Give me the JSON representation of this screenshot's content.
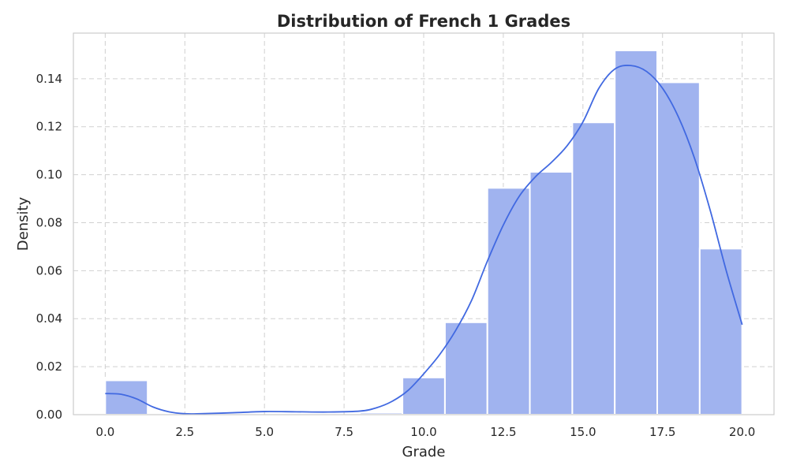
{
  "chart_data": {
    "type": "bar",
    "title": "Distribution of French 1 Grades",
    "xlabel": "Grade",
    "ylabel": "Density",
    "xlim": [
      -1,
      21
    ],
    "ylim": [
      0,
      0.159
    ],
    "xticks": [
      0.0,
      2.5,
      5.0,
      7.5,
      10.0,
      12.5,
      15.0,
      17.5,
      20.0
    ],
    "xtick_labels": [
      "0.0",
      "2.5",
      "5.0",
      "7.5",
      "10.0",
      "12.5",
      "15.0",
      "17.5",
      "20.0"
    ],
    "yticks": [
      0.0,
      0.02,
      0.04,
      0.06,
      0.08,
      0.1,
      0.12,
      0.14
    ],
    "ytick_labels": [
      "0.00",
      "0.02",
      "0.04",
      "0.06",
      "0.08",
      "0.10",
      "0.12",
      "0.14"
    ],
    "grid": true,
    "bins": [
      {
        "x0": 0.0,
        "x1": 1.333,
        "density": 0.0143
      },
      {
        "x0": 1.333,
        "x1": 2.667,
        "density": 0.0
      },
      {
        "x0": 2.667,
        "x1": 4.0,
        "density": 0.0
      },
      {
        "x0": 4.0,
        "x1": 5.333,
        "density": 0.0
      },
      {
        "x0": 5.333,
        "x1": 6.667,
        "density": 0.0
      },
      {
        "x0": 6.667,
        "x1": 8.0,
        "density": 0.0
      },
      {
        "x0": 8.0,
        "x1": 9.333,
        "density": 0.0008
      },
      {
        "x0": 9.333,
        "x1": 10.667,
        "density": 0.0155
      },
      {
        "x0": 10.667,
        "x1": 12.0,
        "density": 0.0385
      },
      {
        "x0": 12.0,
        "x1": 13.333,
        "density": 0.0945
      },
      {
        "x0": 13.333,
        "x1": 14.667,
        "density": 0.1012
      },
      {
        "x0": 14.667,
        "x1": 16.0,
        "density": 0.1218
      },
      {
        "x0": 16.0,
        "x1": 17.333,
        "density": 0.1518
      },
      {
        "x0": 17.333,
        "x1": 18.667,
        "density": 0.1385
      },
      {
        "x0": 18.667,
        "x1": 20.0,
        "density": 0.0692
      }
    ],
    "kde": {
      "x": [
        0,
        0.5,
        1,
        1.5,
        2,
        2.5,
        3,
        4,
        5,
        6,
        7,
        8,
        8.5,
        9,
        9.5,
        10,
        10.5,
        11,
        11.5,
        12,
        12.5,
        13,
        13.5,
        14,
        14.5,
        15,
        15.5,
        16,
        16.5,
        17,
        17.5,
        18,
        18.5,
        19,
        19.5,
        20
      ],
      "y": [
        0.0088,
        0.0085,
        0.0065,
        0.0032,
        0.0012,
        0.0004,
        0.0004,
        0.0008,
        0.0013,
        0.0012,
        0.0011,
        0.0015,
        0.0028,
        0.0055,
        0.01,
        0.017,
        0.025,
        0.035,
        0.0475,
        0.064,
        0.079,
        0.091,
        0.099,
        0.105,
        0.112,
        0.122,
        0.136,
        0.144,
        0.1455,
        0.143,
        0.136,
        0.124,
        0.107,
        0.085,
        0.06,
        0.0375
      ]
    },
    "bar_color": "#a0b3ef",
    "kde_color": "#4169e1"
  }
}
